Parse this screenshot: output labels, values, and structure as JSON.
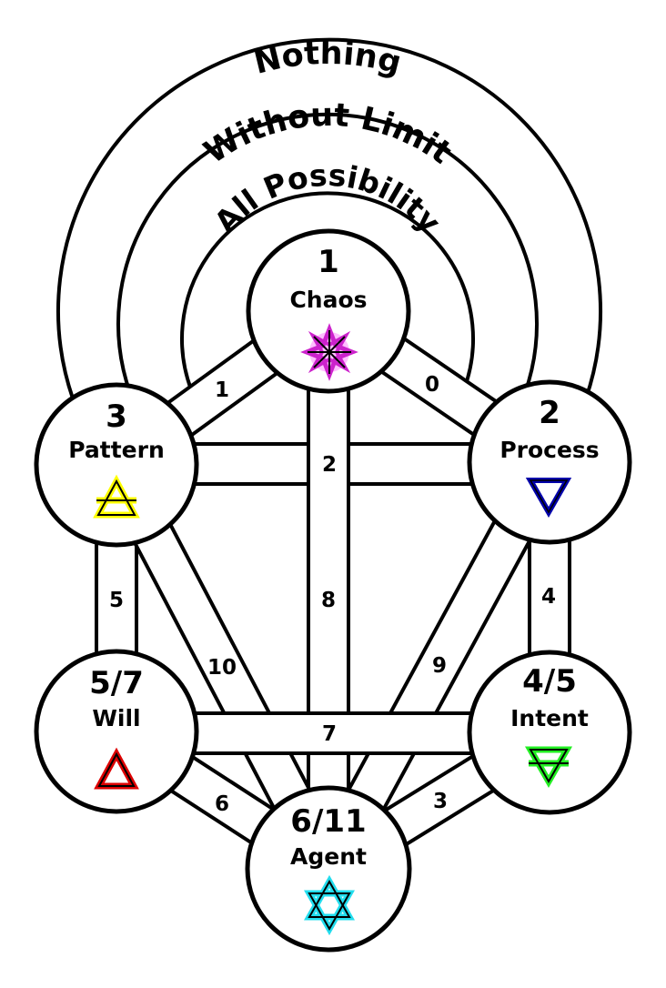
{
  "rings": {
    "outer": "Nothing",
    "middle": "Without Limit",
    "inner": "All Possibility"
  },
  "nodes": {
    "chaos": {
      "number": "1",
      "label": "Chaos"
    },
    "process": {
      "number": "2",
      "label": "Process"
    },
    "pattern": {
      "number": "3",
      "label": "Pattern"
    },
    "intent": {
      "number": "4/5",
      "label": "Intent"
    },
    "will": {
      "number": "5/7",
      "label": "Will"
    },
    "agent": {
      "number": "6/11",
      "label": "Agent"
    }
  },
  "paths": {
    "chaos_pattern": "1",
    "chaos_process": "0",
    "pattern_process": "2",
    "pattern_will": "5",
    "process_intent": "4",
    "chaos_agent": "8",
    "pattern_agent": "10",
    "process_agent": "9",
    "will_intent": "7",
    "will_agent": "6",
    "intent_agent": "3"
  },
  "colors": {
    "chaos_symbol": "#cc22cc",
    "chaos_glow": "#ff55ff",
    "process_symbol": "#0000aa",
    "pattern_symbol": "#ffff00",
    "intent_symbol": "#22ee22",
    "will_symbol": "#dd0000",
    "agent_symbol": "#22ddee"
  },
  "icons": {
    "chaos": "chaos-star-icon",
    "process": "water-triangle-icon",
    "pattern": "air-triangle-icon",
    "intent": "earth-triangle-icon",
    "will": "fire-triangle-icon",
    "agent": "unicursal-hexagram-icon"
  }
}
